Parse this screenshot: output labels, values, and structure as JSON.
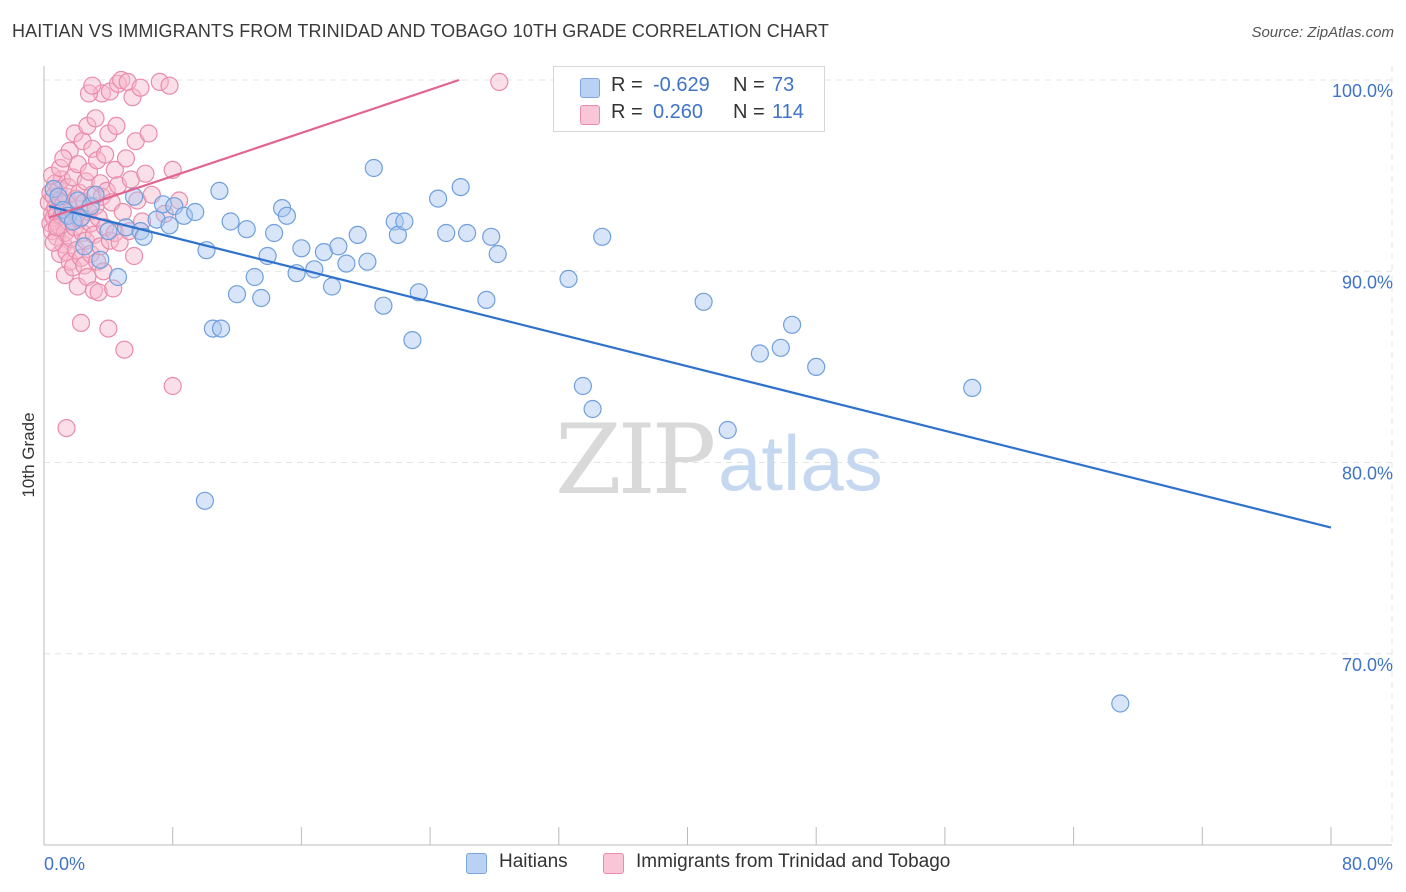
{
  "title": "HAITIAN VS IMMIGRANTS FROM TRINIDAD AND TOBAGO 10TH GRADE CORRELATION CHART",
  "source": "Source: ZipAtlas.com",
  "watermark": {
    "zip": "ZIP",
    "atlas": "atlas"
  },
  "legend": {
    "r_label": "R =",
    "n_label": "N =",
    "rows": [
      {
        "r": "-0.629",
        "n": "73"
      },
      {
        "r": "0.260",
        "n": "114"
      }
    ]
  },
  "bottom_legend": [
    "Haitians",
    "Immigrants from Trinidad and Tobago"
  ],
  "colors": {
    "blue_fill": "#a9c6ef",
    "blue_stroke": "#6f9fdc",
    "blue_line": "#2e72cc",
    "pink_fill": "#f6b8cd",
    "pink_stroke": "#e98bab",
    "pink_line": "#e0658f",
    "tick_text": "#3f73c8",
    "grid": "#e4e4e4"
  },
  "chart_data": {
    "type": "scatter",
    "title": "HAITIAN VS IMMIGRANTS FROM TRINIDAD AND TOBAGO 10TH GRADE CORRELATION CHART",
    "xlabel": "",
    "ylabel": "10th Grade",
    "xlim": [
      0,
      80
    ],
    "ylim": [
      60,
      100
    ],
    "x_tick_labels": [
      "0.0%",
      "80.0%"
    ],
    "y_ticks": [
      70,
      80,
      90,
      100
    ],
    "y_tick_labels": [
      "70.0%",
      "80.0%",
      "90.0%",
      "100.0%"
    ],
    "grid": true,
    "legend_position": "top-center",
    "series": [
      {
        "name": "Haitians",
        "color": "#a9c6ef",
        "R": -0.629,
        "N": 73,
        "trend": {
          "x": [
            0.3,
            80
          ],
          "y": [
            93.4,
            76.6
          ]
        },
        "points": [
          [
            0.6,
            94.3
          ],
          [
            0.9,
            93.9
          ],
          [
            1.2,
            93.2
          ],
          [
            1.5,
            92.9
          ],
          [
            1.8,
            92.6
          ],
          [
            2.1,
            93.7
          ],
          [
            2.3,
            92.8
          ],
          [
            2.5,
            91.3
          ],
          [
            2.9,
            93.4
          ],
          [
            3.2,
            94.0
          ],
          [
            3.5,
            90.6
          ],
          [
            4.0,
            92.1
          ],
          [
            4.6,
            89.7
          ],
          [
            5.1,
            92.3
          ],
          [
            6.0,
            92.1
          ],
          [
            6.2,
            91.8
          ],
          [
            7.0,
            92.7
          ],
          [
            7.4,
            93.5
          ],
          [
            7.8,
            92.4
          ],
          [
            8.1,
            93.4
          ],
          [
            8.7,
            92.9
          ],
          [
            9.4,
            93.1
          ],
          [
            10.1,
            91.1
          ],
          [
            10.5,
            87.0
          ],
          [
            10.9,
            94.2
          ],
          [
            11.0,
            87.0
          ],
          [
            11.6,
            92.6
          ],
          [
            12.0,
            88.8
          ],
          [
            12.6,
            92.2
          ],
          [
            13.1,
            89.7
          ],
          [
            13.5,
            88.6
          ],
          [
            13.9,
            90.8
          ],
          [
            14.3,
            92.0
          ],
          [
            14.8,
            93.3
          ],
          [
            15.1,
            92.9
          ],
          [
            15.7,
            89.9
          ],
          [
            16.0,
            91.2
          ],
          [
            16.8,
            90.1
          ],
          [
            17.4,
            91.0
          ],
          [
            17.9,
            89.2
          ],
          [
            18.3,
            91.3
          ],
          [
            18.8,
            90.4
          ],
          [
            19.5,
            91.9
          ],
          [
            20.1,
            90.5
          ],
          [
            20.5,
            95.4
          ],
          [
            21.1,
            88.2
          ],
          [
            21.8,
            92.6
          ],
          [
            22.0,
            91.9
          ],
          [
            22.4,
            92.6
          ],
          [
            22.9,
            86.4
          ],
          [
            23.3,
            88.9
          ],
          [
            24.5,
            93.8
          ],
          [
            25.0,
            92.0
          ],
          [
            25.9,
            94.4
          ],
          [
            26.3,
            92.0
          ],
          [
            27.5,
            88.5
          ],
          [
            27.8,
            91.8
          ],
          [
            28.2,
            90.9
          ],
          [
            32.6,
            89.6
          ],
          [
            33.5,
            84.0
          ],
          [
            34.1,
            82.8
          ],
          [
            34.7,
            91.8
          ],
          [
            36.0,
            99.6
          ],
          [
            41.0,
            88.4
          ],
          [
            42.5,
            81.7
          ],
          [
            44.5,
            85.7
          ],
          [
            45.8,
            86.0
          ],
          [
            46.5,
            87.2
          ],
          [
            48.0,
            85.0
          ],
          [
            57.7,
            83.9
          ],
          [
            66.9,
            67.4
          ],
          [
            10.0,
            78.0
          ],
          [
            5.6,
            93.9
          ]
        ]
      },
      {
        "name": "Immigrants from Trinidad and Tobago",
        "color": "#f6b8cd",
        "R": 0.26,
        "N": 114,
        "trend": {
          "x": [
            0.3,
            25.8
          ],
          "y": [
            92.8,
            100
          ]
        },
        "points": [
          [
            0.3,
            93.6
          ],
          [
            0.4,
            92.5
          ],
          [
            0.4,
            94.1
          ],
          [
            0.5,
            93.0
          ],
          [
            0.5,
            92.1
          ],
          [
            0.6,
            93.9
          ],
          [
            0.6,
            92.8
          ],
          [
            0.7,
            94.6
          ],
          [
            0.7,
            93.3
          ],
          [
            0.8,
            91.8
          ],
          [
            0.8,
            93.0
          ],
          [
            0.9,
            94.3
          ],
          [
            0.9,
            92.4
          ],
          [
            1.0,
            93.7
          ],
          [
            1.0,
            90.9
          ],
          [
            1.1,
            92.9
          ],
          [
            1.1,
            94.8
          ],
          [
            1.2,
            91.4
          ],
          [
            1.2,
            93.5
          ],
          [
            1.3,
            89.8
          ],
          [
            1.3,
            92.0
          ],
          [
            1.4,
            93.9
          ],
          [
            1.4,
            91.0
          ],
          [
            1.5,
            94.4
          ],
          [
            1.5,
            92.6
          ],
          [
            1.6,
            90.5
          ],
          [
            1.6,
            96.3
          ],
          [
            1.7,
            93.2
          ],
          [
            1.7,
            91.7
          ],
          [
            1.8,
            94.9
          ],
          [
            1.8,
            90.2
          ],
          [
            1.9,
            92.3
          ],
          [
            1.9,
            97.2
          ],
          [
            2.0,
            93.8
          ],
          [
            2.0,
            91.1
          ],
          [
            2.1,
            95.6
          ],
          [
            2.1,
            89.2
          ],
          [
            2.2,
            92.7
          ],
          [
            2.2,
            94.1
          ],
          [
            2.3,
            90.7
          ],
          [
            2.3,
            87.3
          ],
          [
            2.4,
            96.8
          ],
          [
            2.4,
            92.0
          ],
          [
            2.5,
            93.6
          ],
          [
            2.5,
            90.3
          ],
          [
            2.6,
            94.7
          ],
          [
            2.6,
            91.6
          ],
          [
            2.7,
            97.6
          ],
          [
            2.7,
            89.7
          ],
          [
            2.8,
            93.1
          ],
          [
            2.8,
            95.2
          ],
          [
            2.9,
            90.9
          ],
          [
            2.9,
            92.5
          ],
          [
            3.0,
            96.4
          ],
          [
            3.0,
            94.0
          ],
          [
            3.1,
            89.0
          ],
          [
            3.1,
            91.9
          ],
          [
            3.2,
            98.0
          ],
          [
            3.2,
            93.4
          ],
          [
            3.3,
            90.5
          ],
          [
            3.3,
            95.8
          ],
          [
            3.4,
            92.8
          ],
          [
            3.4,
            88.9
          ],
          [
            3.5,
            94.6
          ],
          [
            3.5,
            91.3
          ],
          [
            3.6,
            99.3
          ],
          [
            3.6,
            93.9
          ],
          [
            3.7,
            90.0
          ],
          [
            3.8,
            96.1
          ],
          [
            3.8,
            92.3
          ],
          [
            3.9,
            94.2
          ],
          [
            4.0,
            97.2
          ],
          [
            4.0,
            87.0
          ],
          [
            4.1,
            91.6
          ],
          [
            4.1,
            99.4
          ],
          [
            4.2,
            93.6
          ],
          [
            4.3,
            89.1
          ],
          [
            4.4,
            95.3
          ],
          [
            4.4,
            92.0
          ],
          [
            4.5,
            97.6
          ],
          [
            4.6,
            99.8
          ],
          [
            4.6,
            94.5
          ],
          [
            4.7,
            91.5
          ],
          [
            4.8,
            100.0
          ],
          [
            4.9,
            93.1
          ],
          [
            5.0,
            85.9
          ],
          [
            5.1,
            95.9
          ],
          [
            5.2,
            99.9
          ],
          [
            5.3,
            92.1
          ],
          [
            5.4,
            94.8
          ],
          [
            5.5,
            99.1
          ],
          [
            5.6,
            90.8
          ],
          [
            5.7,
            96.8
          ],
          [
            5.8,
            93.7
          ],
          [
            6.0,
            99.6
          ],
          [
            6.1,
            92.6
          ],
          [
            6.3,
            95.1
          ],
          [
            6.5,
            97.2
          ],
          [
            6.7,
            94.0
          ],
          [
            7.2,
            99.9
          ],
          [
            7.5,
            93.0
          ],
          [
            7.8,
            99.7
          ],
          [
            8.0,
            95.3
          ],
          [
            8.0,
            84.0
          ],
          [
            8.4,
            93.7
          ],
          [
            2.8,
            99.3
          ],
          [
            3.0,
            99.7
          ],
          [
            1.4,
            81.8
          ],
          [
            28.3,
            99.9
          ],
          [
            0.5,
            95.0
          ],
          [
            0.6,
            91.5
          ],
          [
            0.8,
            92.3
          ],
          [
            1.0,
            95.4
          ],
          [
            1.2,
            95.9
          ]
        ]
      }
    ]
  }
}
